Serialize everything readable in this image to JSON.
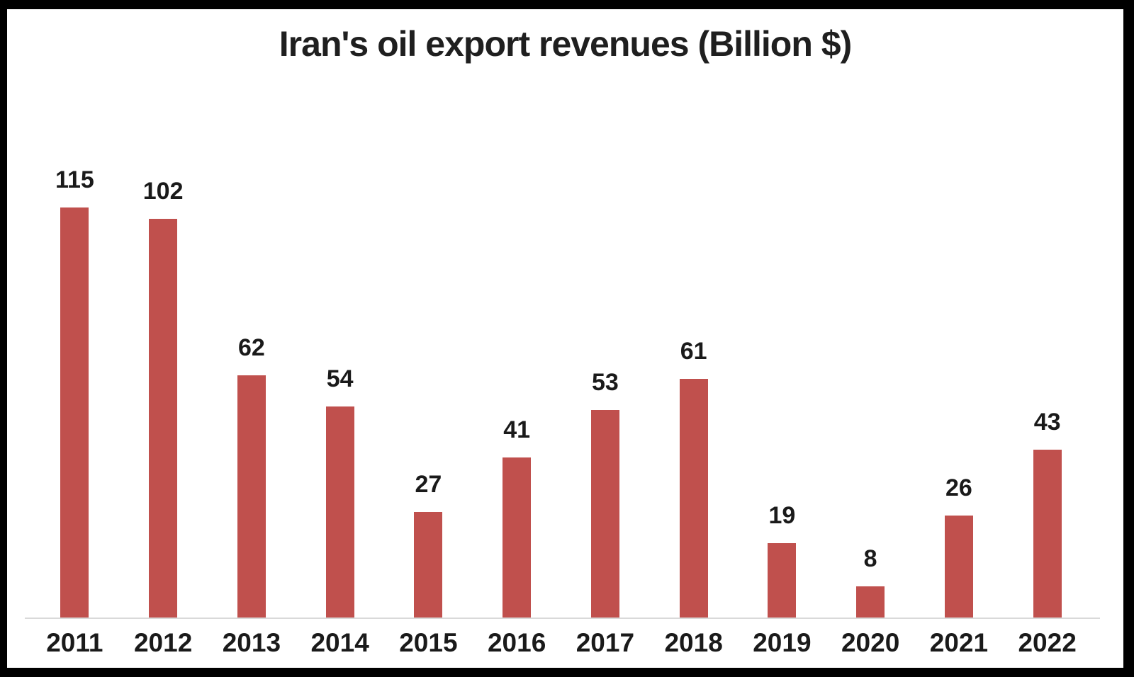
{
  "figure": {
    "background": "#ffffff",
    "border_color": "#000000"
  },
  "chart_data": {
    "type": "bar",
    "title": "Iran's oil export revenues (Billion $)",
    "categories": [
      "2011",
      "2012",
      "2013",
      "2014",
      "2015",
      "2016",
      "2017",
      "2018",
      "2019",
      "2020",
      "2021",
      "2022"
    ],
    "values": [
      115,
      102,
      62,
      54,
      27,
      41,
      53,
      61,
      19,
      8,
      26,
      43
    ],
    "xlabel": "",
    "ylabel": "",
    "ylim": [
      0,
      115
    ],
    "grid": false,
    "legend": false,
    "data_labels": true,
    "bar_color": "#c0504d",
    "value_label_color": "#1a1a1a",
    "tick_label_color": "#1a1a1a",
    "title_color": "#1f1f1f",
    "axis_line_color": "#d9d9d9"
  }
}
